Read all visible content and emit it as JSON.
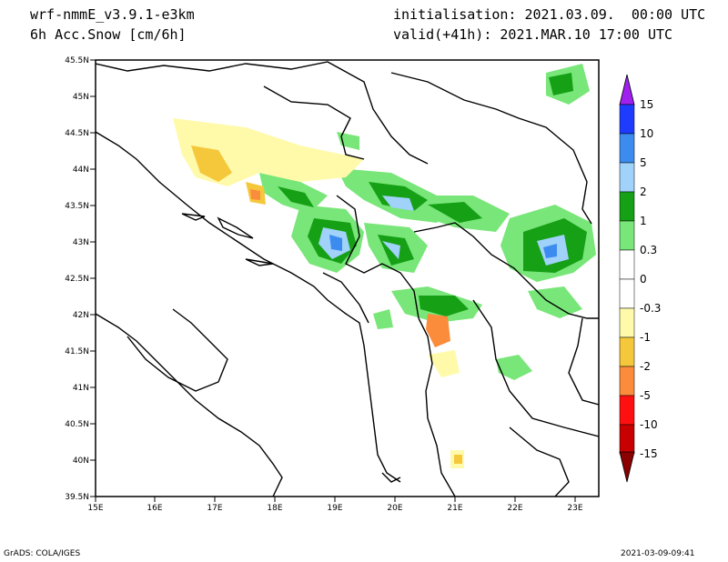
{
  "header": {
    "model": "wrf-nmmE_v3.9.1-e3km",
    "variable": "6h Acc.Snow [cm/6h]",
    "init": "initialisation: 2021.03.09.  00:00 UTC",
    "valid": "valid(+41h): 2021.MAR.10 17:00 UTC"
  },
  "axes": {
    "lat_labels": [
      "45.5N",
      "45N",
      "44.5N",
      "44N",
      "43.5N",
      "43N",
      "42.5N",
      "42N",
      "41.5N",
      "41N",
      "40.5N",
      "40N",
      "39.5N"
    ],
    "lon_labels": [
      "15E",
      "16E",
      "17E",
      "18E",
      "19E",
      "20E",
      "21E",
      "22E",
      "23E"
    ]
  },
  "colorbar": {
    "labels": [
      "15",
      "10",
      "5",
      "2",
      "1",
      "0.3",
      "0",
      "-0.3",
      "-1",
      "-2",
      "-5",
      "-10",
      "-15"
    ],
    "colors": [
      "#1e3cff",
      "#3c8cf0",
      "#a0d2fa",
      "#16a016",
      "#78e678",
      "#ffffff",
      "#ffffff",
      "#fffaaa",
      "#f5c83c",
      "#fa8c3c",
      "#ff1010",
      "#c80000",
      "#a00000"
    ],
    "top_arrow_color": "#a020f0",
    "bottom_arrow_color": "#8b0000"
  },
  "footer": {
    "left": "GrADS: COLA/IGES",
    "right": "2021-03-09-09:41"
  }
}
